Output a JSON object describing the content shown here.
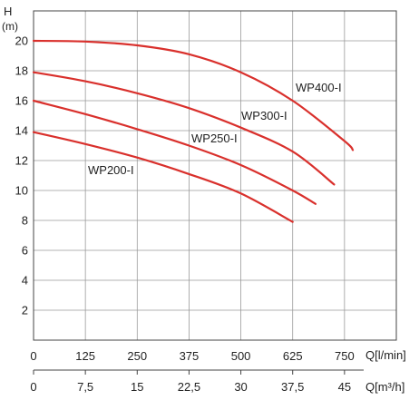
{
  "chart_data": {
    "type": "line",
    "y_axis": {
      "label": "H",
      "unit": "(m)",
      "ticks": [
        2,
        4,
        6,
        8,
        10,
        12,
        14,
        16,
        18,
        20
      ],
      "range": [
        0,
        22
      ]
    },
    "x_axis_primary": {
      "label": "Q[l/min]",
      "ticks": [
        "0",
        "125",
        "250",
        "375",
        "500",
        "625",
        "750"
      ],
      "range": [
        0,
        875
      ]
    },
    "x_axis_secondary": {
      "label": "Q[m³/h]",
      "ticks": [
        "0",
        "7,5",
        "15",
        "22,5",
        "30",
        "37,5",
        "45"
      ]
    },
    "grid": true,
    "curve_color": "#d9302c",
    "series": [
      {
        "name": "WP400-I",
        "x": [
          0,
          125,
          250,
          375,
          500,
          625,
          750,
          770
        ],
        "y": [
          20.0,
          19.95,
          19.7,
          19.1,
          17.9,
          16.0,
          13.3,
          12.7
        ]
      },
      {
        "name": "WP300-I",
        "x": [
          0,
          125,
          250,
          375,
          500,
          625,
          725
        ],
        "y": [
          17.9,
          17.3,
          16.5,
          15.5,
          14.2,
          12.6,
          10.4
        ]
      },
      {
        "name": "WP250-I",
        "x": [
          0,
          125,
          250,
          375,
          500,
          625,
          680
        ],
        "y": [
          16.0,
          15.1,
          14.1,
          13.0,
          11.7,
          10.0,
          9.1
        ]
      },
      {
        "name": "WP200-I",
        "x": [
          0,
          125,
          250,
          375,
          500,
          625
        ],
        "y": [
          13.9,
          13.1,
          12.2,
          11.1,
          9.8,
          7.9
        ]
      }
    ]
  }
}
